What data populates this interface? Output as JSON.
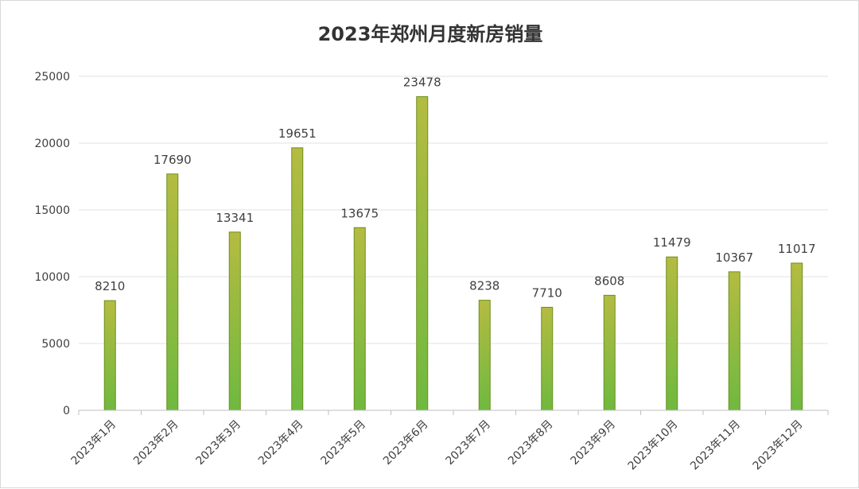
{
  "chart_data": {
    "type": "bar",
    "title": "2023年郑州月度新房销量",
    "categories": [
      "2023年1月",
      "2023年2月",
      "2023年3月",
      "2023年4月",
      "2023年5月",
      "2023年6月",
      "2023年7月",
      "2023年8月",
      "2023年9月",
      "2023年10月",
      "2023年11月",
      "2023年12月"
    ],
    "values": [
      8210,
      17690,
      13341,
      19651,
      13675,
      23478,
      8238,
      7710,
      8608,
      11479,
      10367,
      11017
    ],
    "ylim": [
      0,
      25000
    ],
    "yticks": [
      0,
      5000,
      10000,
      15000,
      20000,
      25000
    ],
    "xlabel": "",
    "ylabel": "",
    "grid": true,
    "legend": "none",
    "colors": {
      "bar_top": "#b5bb41",
      "bar_bottom": "#6fb93f",
      "bar_edge": "#6a8f1f"
    }
  }
}
